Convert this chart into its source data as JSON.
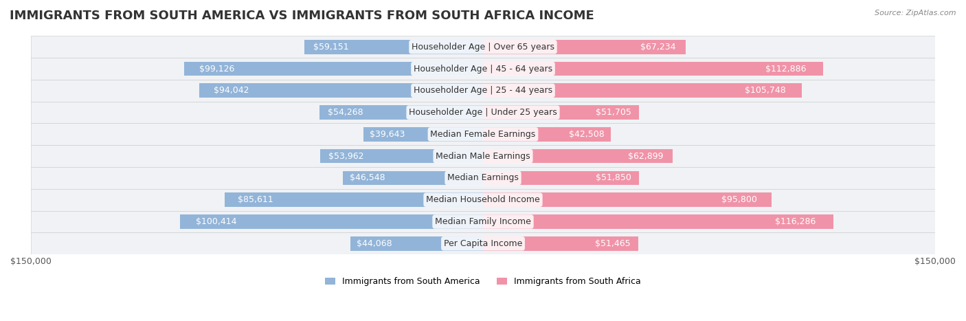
{
  "title": "IMMIGRANTS FROM SOUTH AMERICA VS IMMIGRANTS FROM SOUTH AFRICA INCOME",
  "source": "Source: ZipAtlas.com",
  "categories": [
    "Per Capita Income",
    "Median Family Income",
    "Median Household Income",
    "Median Earnings",
    "Median Male Earnings",
    "Median Female Earnings",
    "Householder Age | Under 25 years",
    "Householder Age | 25 - 44 years",
    "Householder Age | 45 - 64 years",
    "Householder Age | Over 65 years"
  ],
  "south_america_values": [
    44068,
    100414,
    85611,
    46548,
    53962,
    39643,
    54268,
    94042,
    99126,
    59151
  ],
  "south_africa_values": [
    51465,
    116286,
    95800,
    51850,
    62899,
    42508,
    51705,
    105748,
    112886,
    67234
  ],
  "south_america_labels": [
    "$44,068",
    "$100,414",
    "$85,611",
    "$46,548",
    "$53,962",
    "$39,643",
    "$54,268",
    "$94,042",
    "$99,126",
    "$59,151"
  ],
  "south_africa_labels": [
    "$51,465",
    "$116,286",
    "$95,800",
    "$51,850",
    "$62,899",
    "$42,508",
    "$51,705",
    "$105,748",
    "$112,886",
    "$67,234"
  ],
  "color_south_america": "#92b4d8",
  "color_south_africa": "#f093a8",
  "color_south_america_text_dark": "#555555",
  "color_south_africa_text_dark": "#555555",
  "color_south_america_text_light": "#ffffff",
  "color_south_africa_text_light": "#ffffff",
  "max_value": 150000,
  "background_color": "#ffffff",
  "row_bg_color": "#f0f0f0",
  "title_fontsize": 13,
  "label_fontsize": 9,
  "axis_label_fontsize": 9,
  "legend_fontsize": 9
}
